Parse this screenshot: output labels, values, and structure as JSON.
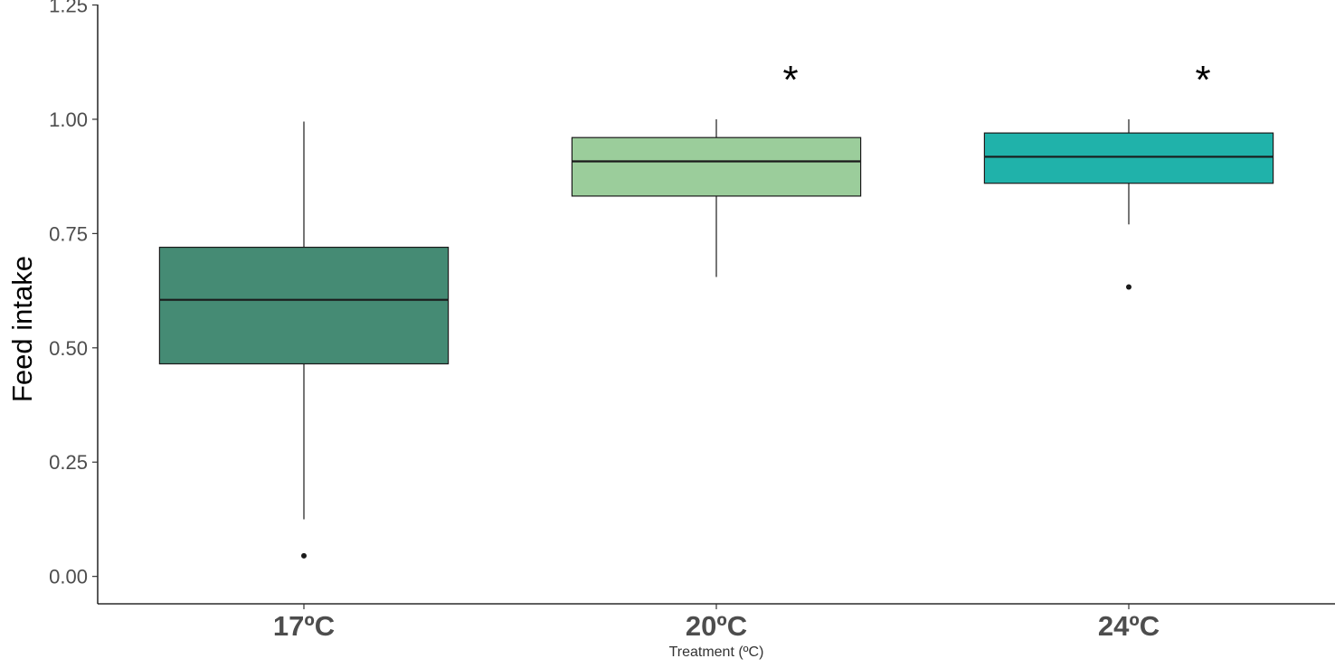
{
  "chart_data": {
    "type": "box",
    "xlabel": "Treatment (ºC)",
    "ylabel": "Feed intake",
    "ylim": [
      -0.06,
      1.255
    ],
    "yticks": [
      {
        "value": 0.0,
        "label": "0.00"
      },
      {
        "value": 0.25,
        "label": "0.25"
      },
      {
        "value": 0.5,
        "label": "0.50"
      },
      {
        "value": 0.75,
        "label": "0.75"
      },
      {
        "value": 1.0,
        "label": "1.00"
      },
      {
        "value": 1.25,
        "label": "1.25"
      }
    ],
    "grid": false,
    "legend": "none",
    "categories": [
      "17ºC",
      "20ºC",
      "24ºC"
    ],
    "boxes": [
      {
        "category": "17ºC",
        "color": "#458B74",
        "whisker_low": 0.125,
        "q1": 0.465,
        "median": 0.605,
        "q3": 0.72,
        "whisker_high": 0.995,
        "outliers": [
          0.045
        ],
        "annotation": ""
      },
      {
        "category": "20ºC",
        "color": "#9BCD9B",
        "whisker_low": 0.655,
        "q1": 0.832,
        "median": 0.908,
        "q3": 0.96,
        "whisker_high": 1.0,
        "outliers": [],
        "annotation": "*"
      },
      {
        "category": "24ºC",
        "color": "#20B2AA",
        "whisker_low": 0.77,
        "q1": 0.86,
        "median": 0.918,
        "q3": 0.97,
        "whisker_high": 1.0,
        "outliers": [
          0.633
        ],
        "annotation": "*"
      }
    ]
  }
}
